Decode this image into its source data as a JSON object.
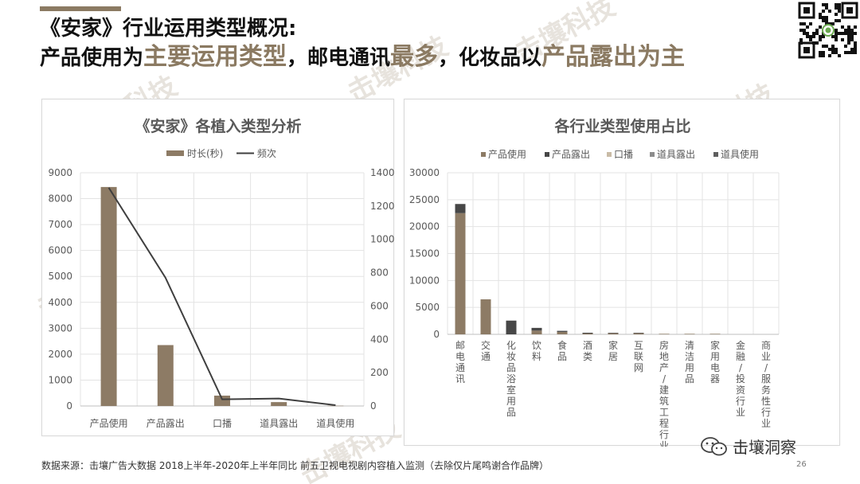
{
  "header": {
    "title_line1": "《安家》行业运用类型概况:",
    "title_line2_parts": [
      "产品使用为",
      "主要运用类型",
      "，邮电通讯",
      "最多",
      "，化妆品以",
      "产品露出为主"
    ]
  },
  "watermark_text": "击壤科技",
  "brand": {
    "name": "击壤洞察",
    "icon": "wechat-icon"
  },
  "footer": {
    "source": "数据来源：击壤广告大数据  2018上半年-2020年上半年同比 前五卫视电视剧内容植入监测（去除仅片尾鸣谢合作品牌）",
    "page_number": "26"
  },
  "colors": {
    "accent": "#8b7a62",
    "bar_brown": "#8d7b65",
    "line_dark": "#3f3f3f",
    "stack_dark": "#474747",
    "stack_light": "#c9bba6",
    "stack_mid": "#8c8c8c",
    "stack_gray": "#5e5e5e"
  },
  "chart_data": [
    {
      "type": "bar",
      "title": "《安家》各植入类型分析",
      "categories": [
        "产品使用",
        "产品露出",
        "口播",
        "道具露出",
        "道具使用"
      ],
      "series": [
        {
          "name": "时长(秒)",
          "type": "bar",
          "axis": "left",
          "values": [
            8450,
            2350,
            400,
            150,
            10
          ]
        },
        {
          "name": "频次",
          "type": "line",
          "axis": "right",
          "values": [
            1310,
            770,
            40,
            45,
            5
          ]
        }
      ],
      "ylim": [
        0,
        9000
      ],
      "y_ticks": [
        "0",
        "1000",
        "2000",
        "3000",
        "4000",
        "5000",
        "6000",
        "7000",
        "8000",
        "9000"
      ],
      "y2lim": [
        0,
        1400
      ],
      "y2_ticks": [
        "0",
        "200",
        "400",
        "600",
        "800",
        "1000",
        "1200",
        "1400"
      ],
      "legend_position": "top",
      "grid": true
    },
    {
      "type": "bar",
      "stacked": true,
      "title": "各行业类型使用占比",
      "categories": [
        "邮电通讯",
        "交通",
        "化妆品浴室用品",
        "饮料",
        "食品",
        "酒类",
        "家居",
        "互联网",
        "房地产建筑工程行业",
        "清洁用品",
        "家用电器",
        "金融投资行业",
        "商业服务性行业"
      ],
      "category_labels": [
        "邮电通讯",
        "交通",
        "化妆品浴室用品",
        "饮料",
        "食品",
        "酒类",
        "家居",
        "互联网",
        "房地产/建筑工程行业",
        "清洁用品",
        "家用电器",
        "金融/投资行业",
        "商业/服务性行业"
      ],
      "series": [
        {
          "name": "产品使用",
          "values": [
            22500,
            6500,
            0,
            700,
            450,
            150,
            200,
            200,
            100,
            100,
            100,
            0,
            0
          ]
        },
        {
          "name": "产品露出",
          "values": [
            1700,
            0,
            2550,
            500,
            200,
            150,
            100,
            100,
            0,
            0,
            0,
            0,
            0
          ]
        },
        {
          "name": "口播",
          "values": [
            0,
            0,
            0,
            0,
            0,
            0,
            0,
            0,
            0,
            0,
            0,
            0,
            0
          ]
        },
        {
          "name": "道具露出",
          "values": [
            0,
            0,
            0,
            0,
            0,
            0,
            0,
            0,
            0,
            0,
            0,
            0,
            0
          ]
        },
        {
          "name": "道具使用",
          "values": [
            0,
            0,
            0,
            0,
            0,
            0,
            0,
            0,
            0,
            0,
            0,
            0,
            0
          ]
        }
      ],
      "ylim": [
        0,
        30000
      ],
      "y_ticks": [
        "0",
        "5000",
        "10000",
        "15000",
        "20000",
        "25000",
        "30000"
      ],
      "legend_position": "top",
      "grid": true
    }
  ]
}
